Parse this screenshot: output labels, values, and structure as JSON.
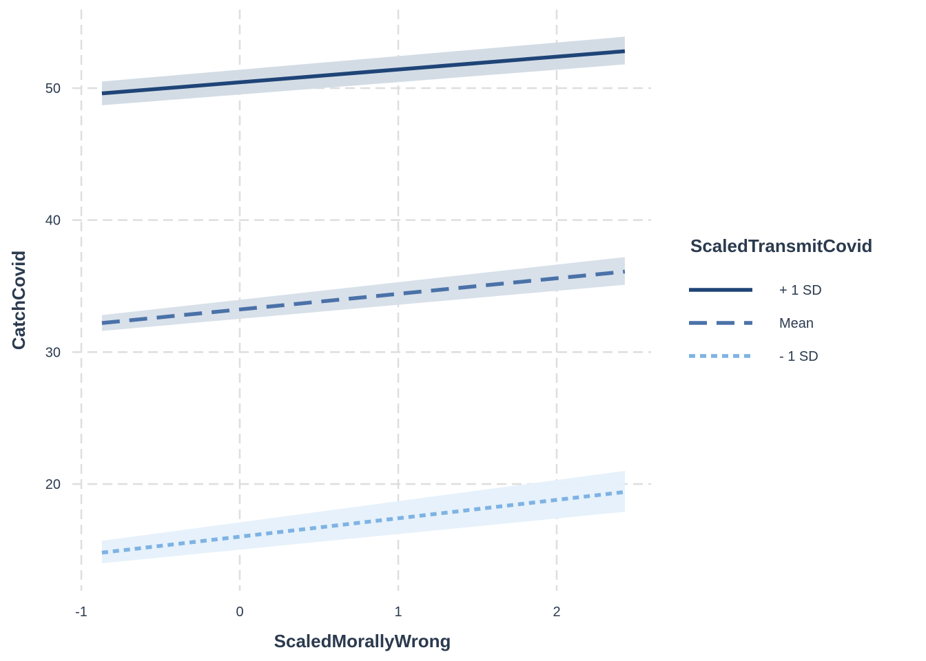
{
  "chart_data": {
    "type": "line",
    "xlabel": "ScaledMorallyWrong",
    "ylabel": "CatchCovid",
    "xlim": [
      -1,
      2.6
    ],
    "ylim": [
      12.5,
      56
    ],
    "xticks": [
      -1,
      0,
      1,
      2
    ],
    "xtick_labels": [
      "-1",
      "0",
      "1",
      "2"
    ],
    "yticks": [
      20,
      30,
      40,
      50
    ],
    "ytick_labels": [
      "20",
      "30",
      "40",
      "50"
    ],
    "grid": true,
    "legend": {
      "title": "ScaledTransmitCovid",
      "placement": "right",
      "entries": [
        "+ 1 SD",
        "Mean",
        "- 1 SD"
      ]
    },
    "series": [
      {
        "name": "+ 1 SD",
        "color": "#1f4477",
        "line_style": "solid",
        "band_color": "#d1dae4",
        "x": [
          -0.87,
          2.43
        ],
        "y": [
          49.6,
          52.8
        ],
        "lower": [
          48.7,
          51.8
        ],
        "upper": [
          50.5,
          53.9
        ]
      },
      {
        "name": "Mean",
        "color": "#4a72a8",
        "line_style": "dashed",
        "band_color": "#d6dee9",
        "x": [
          -0.87,
          2.43
        ],
        "y": [
          32.2,
          36.1
        ],
        "lower": [
          31.6,
          35.1
        ],
        "upper": [
          32.8,
          37.2
        ]
      },
      {
        "name": "- 1 SD",
        "color": "#7eb3e3",
        "line_style": "dotted",
        "band_color": "#e5f0fb",
        "x": [
          -0.87,
          2.43
        ],
        "y": [
          14.8,
          19.4
        ],
        "lower": [
          14.0,
          17.9
        ],
        "upper": [
          15.7,
          21.0
        ]
      }
    ]
  }
}
